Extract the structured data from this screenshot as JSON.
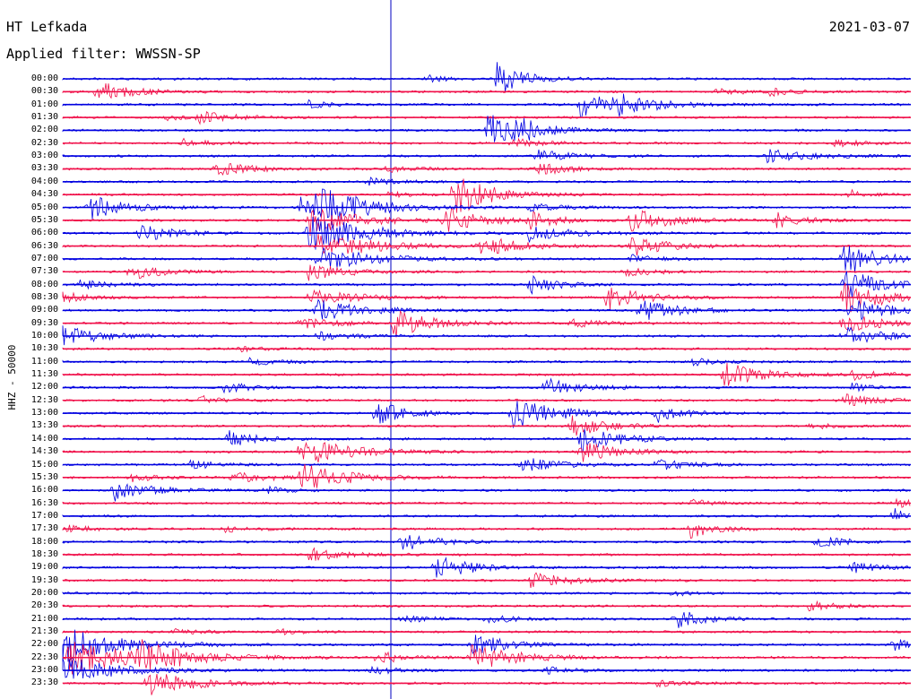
{
  "header": {
    "station": "HT Lefkada",
    "filter": "Applied filter: WWSSN-SP",
    "date": "2021-03-07"
  },
  "chart_data": {
    "type": "line",
    "title": "HT Lefkada",
    "subtitle": "Applied filter: WWSSN-SP",
    "ylabel": "HHZ - 50000",
    "y_ticks": [
      "00:00",
      "00:30",
      "01:00",
      "01:30",
      "02:00",
      "02:30",
      "03:00",
      "03:30",
      "04:00",
      "04:30",
      "05:00",
      "05:30",
      "06:00",
      "06:30",
      "07:00",
      "07:30",
      "08:00",
      "08:30",
      "09:00",
      "09:30",
      "10:00",
      "10:30",
      "11:00",
      "11:30",
      "12:00",
      "12:30",
      "13:00",
      "13:30",
      "14:00",
      "14:30",
      "15:00",
      "15:30",
      "16:00",
      "16:30",
      "17:00",
      "17:30",
      "18:00",
      "18:30",
      "19:00",
      "19:30",
      "20:00",
      "20:30",
      "21:00",
      "21:30",
      "22:00",
      "22:30",
      "23:00",
      "23:30"
    ],
    "trace_colors": [
      "#0000e0",
      "#f0104a"
    ],
    "grid": false,
    "events": [
      {
        "row": 0,
        "x": 0.43,
        "a": 0.5,
        "w": 0.02
      },
      {
        "row": 0,
        "x": 0.51,
        "a": 2.4,
        "w": 0.03
      },
      {
        "row": 1,
        "x": 0.04,
        "a": 1.4,
        "w": 0.04
      },
      {
        "row": 1,
        "x": 0.77,
        "a": 0.6,
        "w": 0.03
      },
      {
        "row": 1,
        "x": 0.83,
        "a": 0.5,
        "w": 0.03
      },
      {
        "row": 2,
        "x": 0.29,
        "a": 0.6,
        "w": 0.02
      },
      {
        "row": 2,
        "x": 0.61,
        "a": 1.7,
        "w": 0.04
      },
      {
        "row": 2,
        "x": 0.65,
        "a": 1.5,
        "w": 0.04
      },
      {
        "row": 3,
        "x": 0.16,
        "a": 0.8,
        "w": 0.04
      },
      {
        "row": 3,
        "x": 0.12,
        "a": 0.4,
        "w": 0.02
      },
      {
        "row": 4,
        "x": 0.5,
        "a": 2.6,
        "w": 0.03
      },
      {
        "row": 4,
        "x": 0.53,
        "a": 1.5,
        "w": 0.04
      },
      {
        "row": 5,
        "x": 0.14,
        "a": 0.6,
        "w": 0.03
      },
      {
        "row": 5,
        "x": 0.53,
        "a": 0.7,
        "w": 0.03
      },
      {
        "row": 5,
        "x": 0.91,
        "a": 0.5,
        "w": 0.03
      },
      {
        "row": 6,
        "x": 0.56,
        "a": 0.9,
        "w": 0.04
      },
      {
        "row": 6,
        "x": 0.83,
        "a": 0.9,
        "w": 0.05
      },
      {
        "row": 7,
        "x": 0.18,
        "a": 1.0,
        "w": 0.04
      },
      {
        "row": 7,
        "x": 0.38,
        "a": 0.5,
        "w": 0.03
      },
      {
        "row": 7,
        "x": 0.56,
        "a": 1.2,
        "w": 0.03
      },
      {
        "row": 8,
        "x": 0.36,
        "a": 0.5,
        "w": 0.03
      },
      {
        "row": 9,
        "x": 0.38,
        "a": 0.4,
        "w": 0.03
      },
      {
        "row": 9,
        "x": 0.46,
        "a": 3.2,
        "w": 0.04
      },
      {
        "row": 9,
        "x": 0.93,
        "a": 0.6,
        "w": 0.02
      },
      {
        "row": 10,
        "x": 0.03,
        "a": 1.9,
        "w": 0.04
      },
      {
        "row": 10,
        "x": 0.28,
        "a": 1.6,
        "w": 0.05
      },
      {
        "row": 10,
        "x": 0.3,
        "a": 2.4,
        "w": 0.05
      },
      {
        "row": 10,
        "x": 0.55,
        "a": 0.7,
        "w": 0.03
      },
      {
        "row": 11,
        "x": 0.29,
        "a": 2.2,
        "w": 0.05
      },
      {
        "row": 11,
        "x": 0.45,
        "a": 1.8,
        "w": 0.04
      },
      {
        "row": 11,
        "x": 0.55,
        "a": 1.2,
        "w": 0.03
      },
      {
        "row": 11,
        "x": 0.67,
        "a": 2.0,
        "w": 0.04
      },
      {
        "row": 11,
        "x": 0.84,
        "a": 1.1,
        "w": 0.03
      },
      {
        "row": 12,
        "x": 0.09,
        "a": 1.2,
        "w": 0.04
      },
      {
        "row": 12,
        "x": 0.29,
        "a": 2.8,
        "w": 0.06
      },
      {
        "row": 12,
        "x": 0.55,
        "a": 1.3,
        "w": 0.04
      },
      {
        "row": 13,
        "x": 0.3,
        "a": 2.0,
        "w": 0.06
      },
      {
        "row": 13,
        "x": 0.49,
        "a": 1.6,
        "w": 0.04
      },
      {
        "row": 13,
        "x": 0.67,
        "a": 1.5,
        "w": 0.04
      },
      {
        "row": 14,
        "x": 0.3,
        "a": 1.8,
        "w": 0.06
      },
      {
        "row": 14,
        "x": 0.67,
        "a": 0.6,
        "w": 0.03
      },
      {
        "row": 14,
        "x": 0.92,
        "a": 2.6,
        "w": 0.04
      },
      {
        "row": 15,
        "x": 0.08,
        "a": 1.0,
        "w": 0.04
      },
      {
        "row": 15,
        "x": 0.29,
        "a": 1.2,
        "w": 0.04
      },
      {
        "row": 15,
        "x": 0.66,
        "a": 0.8,
        "w": 0.03
      },
      {
        "row": 16,
        "x": 0.02,
        "a": 0.7,
        "w": 0.03
      },
      {
        "row": 16,
        "x": 0.55,
        "a": 1.5,
        "w": 0.03
      },
      {
        "row": 16,
        "x": 0.92,
        "a": 2.4,
        "w": 0.04
      },
      {
        "row": 17,
        "x": 0.0,
        "a": 0.7,
        "w": 0.03
      },
      {
        "row": 17,
        "x": 0.29,
        "a": 1.3,
        "w": 0.05
      },
      {
        "row": 17,
        "x": 0.64,
        "a": 1.8,
        "w": 0.04
      },
      {
        "row": 17,
        "x": 0.92,
        "a": 2.6,
        "w": 0.04
      },
      {
        "row": 18,
        "x": 0.3,
        "a": 1.6,
        "w": 0.05
      },
      {
        "row": 18,
        "x": 0.68,
        "a": 1.7,
        "w": 0.04
      },
      {
        "row": 18,
        "x": 0.93,
        "a": 1.8,
        "w": 0.04
      },
      {
        "row": 19,
        "x": 0.28,
        "a": 0.8,
        "w": 0.04
      },
      {
        "row": 19,
        "x": 0.39,
        "a": 2.0,
        "w": 0.04
      },
      {
        "row": 19,
        "x": 0.6,
        "a": 0.6,
        "w": 0.03
      },
      {
        "row": 19,
        "x": 0.92,
        "a": 1.5,
        "w": 0.04
      },
      {
        "row": 20,
        "x": 0.0,
        "a": 1.5,
        "w": 0.04
      },
      {
        "row": 20,
        "x": 0.3,
        "a": 0.6,
        "w": 0.04
      },
      {
        "row": 20,
        "x": 0.92,
        "a": 1.5,
        "w": 0.04
      },
      {
        "row": 21,
        "x": 0.21,
        "a": 0.3,
        "w": 0.03
      },
      {
        "row": 22,
        "x": 0.22,
        "a": 0.5,
        "w": 0.03
      },
      {
        "row": 22,
        "x": 0.74,
        "a": 0.5,
        "w": 0.03
      },
      {
        "row": 23,
        "x": 0.78,
        "a": 1.8,
        "w": 0.04
      },
      {
        "row": 23,
        "x": 0.93,
        "a": 0.8,
        "w": 0.03
      },
      {
        "row": 24,
        "x": 0.19,
        "a": 0.8,
        "w": 0.03
      },
      {
        "row": 24,
        "x": 0.57,
        "a": 1.2,
        "w": 0.04
      },
      {
        "row": 24,
        "x": 0.93,
        "a": 0.6,
        "w": 0.02
      },
      {
        "row": 25,
        "x": 0.16,
        "a": 0.6,
        "w": 0.03
      },
      {
        "row": 25,
        "x": 0.92,
        "a": 0.9,
        "w": 0.04
      },
      {
        "row": 26,
        "x": 0.37,
        "a": 2.0,
        "w": 0.03
      },
      {
        "row": 26,
        "x": 0.53,
        "a": 2.2,
        "w": 0.05
      },
      {
        "row": 26,
        "x": 0.7,
        "a": 1.2,
        "w": 0.03
      },
      {
        "row": 27,
        "x": 0.6,
        "a": 1.4,
        "w": 0.04
      },
      {
        "row": 27,
        "x": 0.88,
        "a": 0.6,
        "w": 0.03
      },
      {
        "row": 28,
        "x": 0.19,
        "a": 1.4,
        "w": 0.03
      },
      {
        "row": 28,
        "x": 0.61,
        "a": 2.0,
        "w": 0.04
      },
      {
        "row": 29,
        "x": 0.28,
        "a": 2.2,
        "w": 0.05
      },
      {
        "row": 29,
        "x": 0.61,
        "a": 1.6,
        "w": 0.04
      },
      {
        "row": 30,
        "x": 0.15,
        "a": 0.6,
        "w": 0.03
      },
      {
        "row": 30,
        "x": 0.54,
        "a": 1.2,
        "w": 0.04
      },
      {
        "row": 30,
        "x": 0.7,
        "a": 1.0,
        "w": 0.03
      },
      {
        "row": 31,
        "x": 0.08,
        "a": 0.6,
        "w": 0.03
      },
      {
        "row": 31,
        "x": 0.2,
        "a": 0.8,
        "w": 0.04
      },
      {
        "row": 31,
        "x": 0.28,
        "a": 2.0,
        "w": 0.05
      },
      {
        "row": 32,
        "x": 0.06,
        "a": 1.6,
        "w": 0.04
      },
      {
        "row": 32,
        "x": 0.24,
        "a": 0.5,
        "w": 0.02
      },
      {
        "row": 33,
        "x": 0.74,
        "a": 0.5,
        "w": 0.03
      },
      {
        "row": 33,
        "x": 0.98,
        "a": 0.8,
        "w": 0.02
      },
      {
        "row": 34,
        "x": 0.98,
        "a": 1.0,
        "w": 0.02
      },
      {
        "row": 35,
        "x": 0.0,
        "a": 0.7,
        "w": 0.03
      },
      {
        "row": 35,
        "x": 0.19,
        "a": 0.4,
        "w": 0.03
      },
      {
        "row": 35,
        "x": 0.74,
        "a": 1.2,
        "w": 0.03
      },
      {
        "row": 36,
        "x": 0.4,
        "a": 1.2,
        "w": 0.04
      },
      {
        "row": 36,
        "x": 0.89,
        "a": 0.9,
        "w": 0.03
      },
      {
        "row": 37,
        "x": 0.29,
        "a": 0.9,
        "w": 0.04
      },
      {
        "row": 38,
        "x": 0.44,
        "a": 1.7,
        "w": 0.04
      },
      {
        "row": 38,
        "x": 0.93,
        "a": 0.8,
        "w": 0.03
      },
      {
        "row": 39,
        "x": 0.55,
        "a": 1.2,
        "w": 0.04
      },
      {
        "row": 40,
        "x": 0.72,
        "a": 0.5,
        "w": 0.02
      },
      {
        "row": 41,
        "x": 0.88,
        "a": 0.7,
        "w": 0.03
      },
      {
        "row": 42,
        "x": 0.4,
        "a": 0.6,
        "w": 0.03
      },
      {
        "row": 42,
        "x": 0.5,
        "a": 0.6,
        "w": 0.03
      },
      {
        "row": 42,
        "x": 0.72,
        "a": 1.5,
        "w": 0.03
      },
      {
        "row": 43,
        "x": 0.13,
        "a": 0.4,
        "w": 0.03
      },
      {
        "row": 43,
        "x": 0.25,
        "a": 0.4,
        "w": 0.03
      },
      {
        "row": 44,
        "x": 0.0,
        "a": 2.6,
        "w": 0.06
      },
      {
        "row": 44,
        "x": 0.48,
        "a": 1.6,
        "w": 0.04
      },
      {
        "row": 44,
        "x": 0.98,
        "a": 1.0,
        "w": 0.02
      },
      {
        "row": 45,
        "x": 0.0,
        "a": 2.8,
        "w": 0.07
      },
      {
        "row": 45,
        "x": 0.09,
        "a": 1.8,
        "w": 0.05
      },
      {
        "row": 45,
        "x": 0.37,
        "a": 0.9,
        "w": 0.03
      },
      {
        "row": 45,
        "x": 0.48,
        "a": 2.0,
        "w": 0.05
      },
      {
        "row": 46,
        "x": 0.0,
        "a": 2.0,
        "w": 0.06
      },
      {
        "row": 46,
        "x": 0.36,
        "a": 0.6,
        "w": 0.03
      },
      {
        "row": 46,
        "x": 0.57,
        "a": 0.5,
        "w": 0.03
      },
      {
        "row": 47,
        "x": 0.1,
        "a": 1.8,
        "w": 0.05
      },
      {
        "row": 47,
        "x": 0.7,
        "a": 0.5,
        "w": 0.03
      }
    ]
  }
}
